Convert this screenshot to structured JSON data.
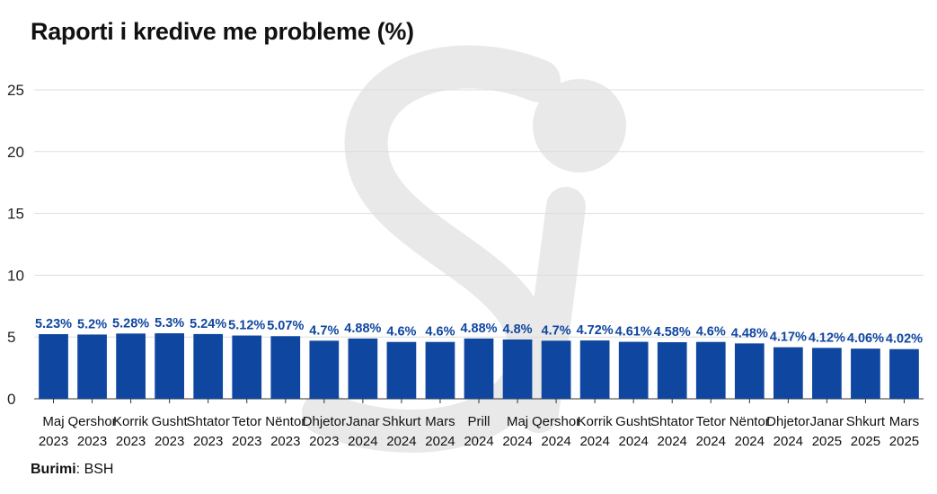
{
  "title": "Raporti i kredive me probleme (%)",
  "source": {
    "label": "Burimi",
    "value": ": BSH"
  },
  "colors": {
    "bar": "#0f46a0",
    "label": "#0f46a0",
    "grid": "#dddddd",
    "watermark": "#e6e6e6"
  },
  "chart_data": {
    "type": "bar",
    "title": "Raporti i kredive me probleme (%)",
    "xlabel": "",
    "ylabel": "",
    "ylim": [
      0,
      25
    ],
    "yticks": [
      0,
      5,
      10,
      15,
      20,
      25
    ],
    "grid": true,
    "categories": [
      [
        "Maj",
        "2023"
      ],
      [
        "Qershor",
        "2023"
      ],
      [
        "Korrik",
        "2023"
      ],
      [
        "Gusht",
        "2023"
      ],
      [
        "Shtator",
        "2023"
      ],
      [
        "Tetor",
        "2023"
      ],
      [
        "Nëntor",
        "2023"
      ],
      [
        "Dhjetor",
        "2023"
      ],
      [
        "Janar",
        "2024"
      ],
      [
        "Shkurt",
        "2024"
      ],
      [
        "Mars",
        "2024"
      ],
      [
        "Prill",
        "2024"
      ],
      [
        "Maj",
        "2024"
      ],
      [
        "Qershor",
        "2024"
      ],
      [
        "Korrik",
        "2024"
      ],
      [
        "Gusht",
        "2024"
      ],
      [
        "Shtator",
        "2024"
      ],
      [
        "Tetor",
        "2024"
      ],
      [
        "Nëntor",
        "2024"
      ],
      [
        "Dhjetor",
        "2024"
      ],
      [
        "Janar",
        "2025"
      ],
      [
        "Shkurt",
        "2025"
      ],
      [
        "Mars",
        "2025"
      ]
    ],
    "values": [
      5.23,
      5.2,
      5.28,
      5.3,
      5.24,
      5.12,
      5.07,
      4.7,
      4.88,
      4.6,
      4.6,
      4.88,
      4.8,
      4.7,
      4.72,
      4.61,
      4.58,
      4.6,
      4.48,
      4.17,
      4.12,
      4.06,
      4.02
    ],
    "labels": [
      "5.23%",
      "5.2%",
      "5.28%",
      "5.3%",
      "5.24%",
      "5.12%",
      "5.07%",
      "4.7%",
      "4.88%",
      "4.6%",
      "4.6%",
      "4.88%",
      "4.8%",
      "4.7%",
      "4.72%",
      "4.61%",
      "4.58%",
      "4.6%",
      "4.48%",
      "4.17%",
      "4.12%",
      "4.06%",
      "4.02%"
    ]
  }
}
